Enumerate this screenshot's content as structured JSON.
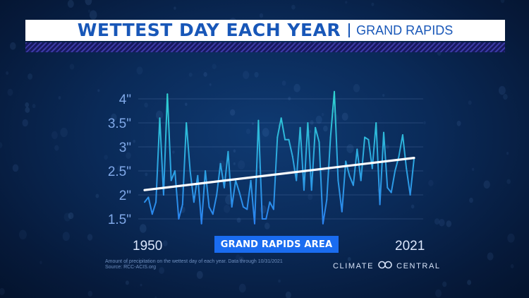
{
  "header": {
    "title": "WETTEST DAY EACH YEAR",
    "subtitle": "GRAND RAPIDS"
  },
  "badge": {
    "label": "GRAND RAPIDS AREA"
  },
  "footnote": {
    "line1": "Amount of precipitation on the wettest day of each year. Data through 10/31/2021",
    "line2": "Source: RCC-ACIS.org"
  },
  "brand": {
    "left": "CLIMATE",
    "right": "CENTRAL",
    "icon": "infinity-logo-icon"
  },
  "colors": {
    "line_top": "#2fd3d0",
    "line_bottom": "#2a7ff0",
    "trend": "#ffffff",
    "accent": "#1a6cf0",
    "title_text": "#1857b8"
  },
  "chart_data": {
    "type": "line",
    "title": "WETTEST DAY EACH YEAR",
    "x_start_label": "1950",
    "x_end_label": "2021",
    "xlim": [
      1950,
      2021
    ],
    "ylim": [
      1.5,
      4
    ],
    "y_ticks": [
      1.5,
      2,
      2.5,
      3,
      3.5,
      4
    ],
    "y_tick_labels": [
      "1.5\"",
      "2\"",
      "2.5\"",
      "3\"",
      "3.5\"",
      "4\""
    ],
    "grid": true,
    "series": [
      {
        "x": [
          1950,
          1951,
          1952,
          1953,
          1954,
          1955,
          1956,
          1957,
          1958,
          1959,
          1960,
          1961,
          1962,
          1963,
          1964,
          1965,
          1966,
          1967,
          1968,
          1969,
          1970,
          1971,
          1972,
          1973,
          1974,
          1975,
          1976,
          1977,
          1978,
          1979,
          1980,
          1981,
          1982,
          1983,
          1984,
          1985,
          1986,
          1987,
          1988,
          1989,
          1990,
          1991,
          1992,
          1993,
          1994,
          1995,
          1996,
          1997,
          1998,
          1999,
          2000,
          2001,
          2002,
          2003,
          2004,
          2005,
          2006,
          2007,
          2008,
          2009,
          2010,
          2011,
          2012,
          2013,
          2014,
          2015,
          2016,
          2017,
          2018,
          2019,
          2020,
          2021
        ],
        "values": [
          1.85,
          1.95,
          1.6,
          1.85,
          3.6,
          2.0,
          4.1,
          2.3,
          2.5,
          1.5,
          1.8,
          3.5,
          2.5,
          1.85,
          2.4,
          1.4,
          2.5,
          1.75,
          1.6,
          2.0,
          2.65,
          2.15,
          2.9,
          1.75,
          2.3,
          2.05,
          1.75,
          1.7,
          2.3,
          1.4,
          3.55,
          1.5,
          1.5,
          1.85,
          1.7,
          3.2,
          3.6,
          3.15,
          3.15,
          2.8,
          2.3,
          3.4,
          2.1,
          3.5,
          2.1,
          3.4,
          3.1,
          1.4,
          1.9,
          3.2,
          4.15,
          2.3,
          1.65,
          2.7,
          2.4,
          2.2,
          2.95,
          2.3,
          3.2,
          3.15,
          2.55,
          3.5,
          1.8,
          3.3,
          2.15,
          2.05,
          2.5,
          2.8,
          3.25,
          2.55,
          2.0,
          2.75
        ]
      },
      {
        "type": "trend",
        "x": [
          1950,
          2021
        ],
        "values": [
          2.1,
          2.77
        ]
      }
    ]
  }
}
